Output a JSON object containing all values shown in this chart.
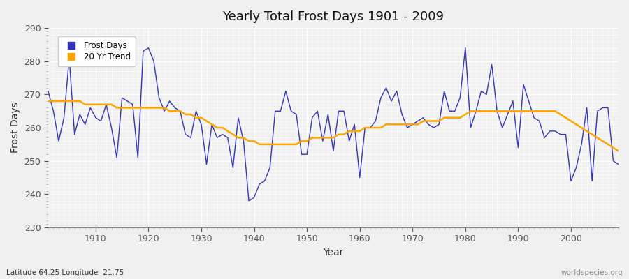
{
  "title": "Yearly Total Frost Days 1901 - 2009",
  "xlabel": "Year",
  "ylabel": "Frost Days",
  "subtitle": "Latitude 64.25 Longitude -21.75",
  "watermark": "worldspecies.org",
  "ylim": [
    230,
    290
  ],
  "xlim": [
    1901,
    2009
  ],
  "yticks": [
    230,
    240,
    250,
    260,
    270,
    280,
    290
  ],
  "xticks": [
    1910,
    1920,
    1930,
    1940,
    1950,
    1960,
    1970,
    1980,
    1990,
    2000
  ],
  "frost_days_color": "#3333bb",
  "trend_color": "#FFA500",
  "background_color": "#f0f0f0",
  "plot_bg_color": "#f0f0f0",
  "legend_frost": "Frost Days",
  "legend_trend": "20 Yr Trend",
  "years": [
    1901,
    1902,
    1903,
    1904,
    1905,
    1906,
    1907,
    1908,
    1909,
    1910,
    1911,
    1912,
    1913,
    1914,
    1915,
    1916,
    1917,
    1918,
    1919,
    1920,
    1921,
    1922,
    1923,
    1924,
    1925,
    1926,
    1927,
    1928,
    1929,
    1930,
    1931,
    1932,
    1933,
    1934,
    1935,
    1936,
    1937,
    1938,
    1939,
    1940,
    1941,
    1942,
    1943,
    1944,
    1945,
    1946,
    1947,
    1948,
    1949,
    1950,
    1951,
    1952,
    1953,
    1954,
    1955,
    1956,
    1957,
    1958,
    1959,
    1960,
    1961,
    1962,
    1963,
    1964,
    1965,
    1966,
    1967,
    1968,
    1969,
    1970,
    1971,
    1972,
    1973,
    1974,
    1975,
    1976,
    1977,
    1978,
    1979,
    1980,
    1981,
    1982,
    1983,
    1984,
    1985,
    1986,
    1987,
    1988,
    1989,
    1990,
    1991,
    1992,
    1993,
    1994,
    1995,
    1996,
    1997,
    1998,
    1999,
    2000,
    2001,
    2002,
    2003,
    2004,
    2005,
    2006,
    2007,
    2008,
    2009
  ],
  "frost_values": [
    271,
    265,
    256,
    263,
    281,
    258,
    264,
    261,
    266,
    263,
    262,
    267,
    260,
    251,
    269,
    268,
    267,
    251,
    283,
    284,
    280,
    269,
    265,
    268,
    266,
    265,
    258,
    257,
    265,
    261,
    249,
    261,
    257,
    258,
    257,
    248,
    263,
    256,
    238,
    239,
    243,
    244,
    248,
    265,
    265,
    271,
    265,
    264,
    252,
    252,
    263,
    265,
    256,
    264,
    253,
    265,
    265,
    256,
    261,
    245,
    260,
    260,
    262,
    269,
    272,
    268,
    271,
    264,
    260,
    261,
    262,
    263,
    261,
    260,
    261,
    271,
    265,
    265,
    269,
    284,
    260,
    265,
    271,
    270,
    279,
    265,
    260,
    264,
    268,
    254,
    273,
    268,
    263,
    262,
    257,
    259,
    259,
    258,
    258,
    244,
    248,
    255,
    266,
    244,
    265,
    266,
    266,
    250,
    249
  ],
  "trend_years": [
    1901,
    1902,
    1903,
    1904,
    1905,
    1906,
    1907,
    1908,
    1909,
    1910,
    1911,
    1912,
    1913,
    1914,
    1915,
    1916,
    1917,
    1918,
    1919,
    1920,
    1921,
    1922,
    1923,
    1924,
    1925,
    1926,
    1927,
    1928,
    1929,
    1930,
    1931,
    1932,
    1933,
    1934,
    1935,
    1936,
    1937,
    1938,
    1939,
    1940,
    1941,
    1942,
    1943,
    1944,
    1945,
    1946,
    1947,
    1948,
    1949,
    1950,
    1951,
    1952,
    1953,
    1954,
    1955,
    1956,
    1957,
    1958,
    1959,
    1960,
    1961,
    1962,
    1963,
    1964,
    1965,
    1966,
    1967,
    1968,
    1969,
    1970,
    1971,
    1972,
    1973,
    1974,
    1975,
    1976,
    1977,
    1978,
    1979,
    1980,
    1981,
    1982,
    1983,
    1984,
    1985,
    1986,
    1987,
    1988,
    1989,
    1990,
    1991,
    1992,
    1993,
    1994,
    1995,
    1996,
    1997,
    1998,
    1999,
    2000,
    2001,
    2002,
    2003,
    2004,
    2005,
    2006,
    2007,
    2008,
    2009
  ],
  "trend_values": [
    268,
    268,
    268,
    268,
    268,
    268,
    268,
    267,
    267,
    267,
    267,
    267,
    267,
    266,
    266,
    266,
    266,
    266,
    266,
    266,
    266,
    266,
    266,
    265,
    265,
    265,
    264,
    264,
    263,
    263,
    262,
    261,
    260,
    260,
    259,
    258,
    257,
    257,
    256,
    256,
    255,
    255,
    255,
    255,
    255,
    255,
    255,
    255,
    256,
    256,
    257,
    257,
    257,
    257,
    257,
    258,
    258,
    259,
    259,
    259,
    260,
    260,
    260,
    260,
    261,
    261,
    261,
    261,
    261,
    261,
    261,
    262,
    262,
    262,
    262,
    263,
    263,
    263,
    263,
    264,
    265,
    265,
    265,
    265,
    265,
    265,
    265,
    265,
    265,
    265,
    265,
    265,
    265,
    265,
    265,
    265,
    265,
    264,
    263,
    262,
    261,
    260,
    259,
    258,
    257,
    256,
    255,
    254,
    253
  ]
}
